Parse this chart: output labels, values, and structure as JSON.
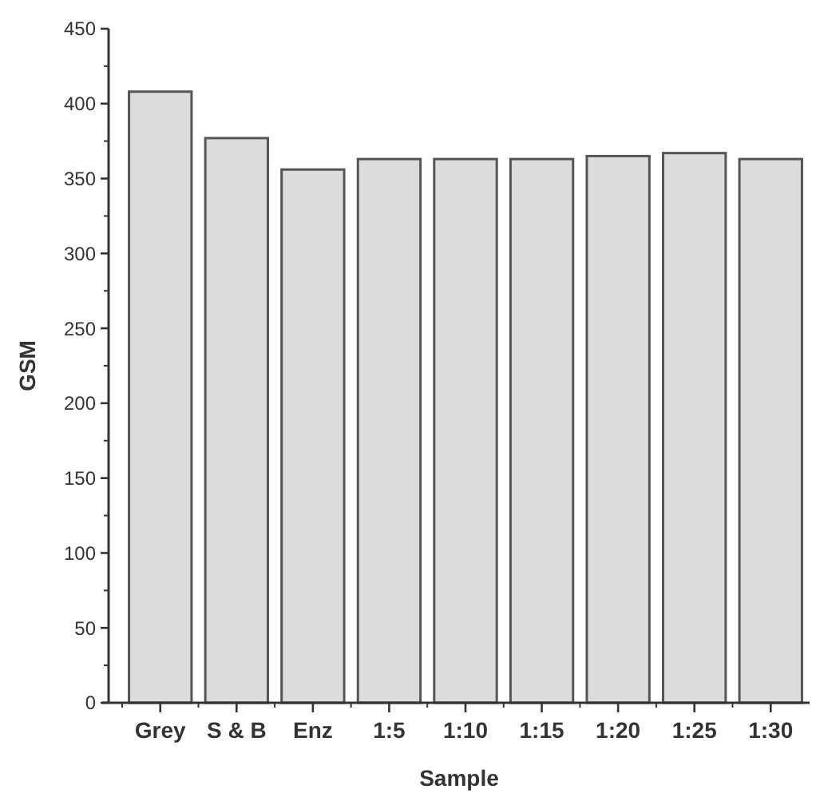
{
  "chart_data": {
    "type": "bar",
    "xlabel": "Sample",
    "ylabel": "GSM",
    "categories": [
      "Grey",
      "S & B",
      "Enz",
      "1:5",
      "1:10",
      "1:15",
      "1:20",
      "1:25",
      "1:30"
    ],
    "values": [
      408,
      377,
      356,
      363,
      363,
      363,
      365,
      367,
      363
    ],
    "color": "#dcdcdc",
    "ylim": [
      0,
      450
    ],
    "yticks": [
      0,
      50,
      100,
      150,
      200,
      250,
      300,
      350,
      400,
      450
    ],
    "grid": false
  }
}
